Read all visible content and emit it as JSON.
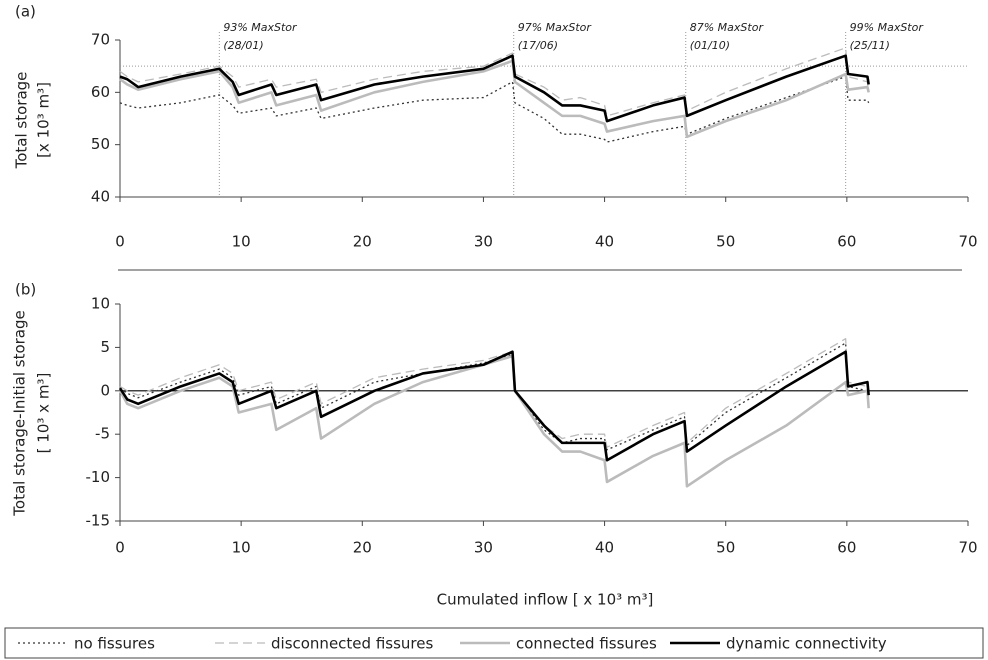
{
  "chart_data": [
    {
      "type": "line",
      "panel_label": "(a)",
      "ylabel": [
        "Total storage",
        "[x 10³ m³]"
      ],
      "xlim": [
        0,
        70
      ],
      "xticks": [
        0,
        10,
        20,
        30,
        40,
        50,
        60,
        70
      ],
      "ylim": [
        40,
        70
      ],
      "yticks": [
        40,
        50,
        60,
        70
      ],
      "hline": 65,
      "annotations": [
        {
          "x": 8.2,
          "label": "93% MaxStor",
          "date": "(28/01)"
        },
        {
          "x": 32.5,
          "label": "97% MaxStor",
          "date": "(17/06)"
        },
        {
          "x": 46.7,
          "label": "87% MaxStor",
          "date": "(01/10)"
        },
        {
          "x": 59.9,
          "label": "99% MaxStor",
          "date": "(25/11)"
        }
      ],
      "x": [
        0,
        0.6,
        1.5,
        5,
        8.2,
        9.3,
        9.8,
        12.5,
        12.9,
        16.2,
        16.6,
        21,
        25,
        30,
        32.4,
        32.6,
        35,
        36.5,
        38,
        40,
        40.2,
        44,
        46.6,
        46.8,
        50,
        55,
        59.9,
        60.1,
        61.7,
        61.8
      ],
      "series": [
        {
          "color": "#333333",
          "dash": "dotted",
          "values": [
            58,
            57.5,
            57,
            58,
            59.5,
            57.5,
            56,
            57,
            55.5,
            57,
            55,
            57,
            58.5,
            59,
            62,
            58,
            55,
            52,
            52,
            51,
            50.5,
            52.5,
            53.5,
            52,
            55,
            59,
            63,
            58.5,
            58.5,
            58
          ]
        },
        {
          "color": "#bbbbbb",
          "dash": "dashed",
          "values": [
            64,
            63,
            62,
            63.5,
            65,
            63,
            61,
            62.5,
            61,
            62.5,
            60,
            62.5,
            64,
            65,
            67.5,
            63.5,
            61,
            58.5,
            59,
            57.5,
            55.5,
            58,
            59.5,
            56.5,
            60,
            64.5,
            68.5,
            63,
            62,
            60
          ]
        },
        {
          "color": "#bbbbbb",
          "dash": "solid",
          "values": [
            62.5,
            61.5,
            60.5,
            62.5,
            64,
            61,
            58,
            60,
            57.5,
            59.5,
            56.5,
            60,
            62,
            64,
            66,
            62,
            58,
            55.5,
            55.5,
            54,
            52.5,
            54.5,
            55.5,
            51.5,
            54.5,
            58.5,
            63.5,
            60.5,
            61,
            60
          ]
        },
        {
          "color": "#000000",
          "dash": "solid",
          "values": [
            63,
            62.5,
            61,
            63,
            64.5,
            62,
            59.5,
            61.5,
            59.5,
            61.5,
            58.5,
            61.5,
            63,
            64.5,
            67,
            63,
            60,
            57.5,
            57.5,
            56.5,
            54.5,
            57.5,
            59,
            55.5,
            58.5,
            63,
            67,
            63.5,
            63,
            61.5
          ]
        }
      ]
    },
    {
      "type": "line",
      "panel_label": "(b)",
      "ylabel": [
        "Total storage-Initial storage",
        "[ 10³ x m³]"
      ],
      "xlabel": "Cumulated inflow [ x 10³ m³]",
      "xlim": [
        0,
        70
      ],
      "xticks": [
        0,
        10,
        20,
        30,
        40,
        50,
        60,
        70
      ],
      "ylim": [
        -15,
        10
      ],
      "yticks": [
        -15,
        -10,
        -5,
        0,
        5,
        10
      ],
      "hline": 0,
      "x": [
        0,
        0.6,
        1.5,
        5,
        8.2,
        9.3,
        9.8,
        12.5,
        12.9,
        16.2,
        16.6,
        21,
        25,
        30,
        32.4,
        32.6,
        35,
        36.5,
        38,
        40,
        40.2,
        44,
        46.6,
        46.8,
        50,
        55,
        59.9,
        60.1,
        61.7,
        61.8
      ],
      "series": [
        {
          "name": "no fissures",
          "color": "#333333",
          "dash": "dotted",
          "values": [
            0.3,
            -0.3,
            -0.8,
            1,
            2.5,
            1.5,
            -0.5,
            0.5,
            -1.5,
            0.5,
            -2,
            1,
            2,
            3.2,
            4.2,
            0,
            -4.5,
            -6,
            -5.5,
            -5.5,
            -6.8,
            -4.5,
            -3,
            -6.3,
            -2.5,
            1.5,
            5.5,
            0.5,
            0,
            -0.5
          ]
        },
        {
          "name": "disconnected fissures",
          "color": "#bbbbbb",
          "dash": "dashed",
          "values": [
            0.5,
            0,
            -0.5,
            1.5,
            3,
            2,
            0,
            1,
            -1,
            1,
            -1.5,
            1.5,
            2.5,
            3.5,
            4.5,
            0,
            -4,
            -5.5,
            -5,
            -5,
            -6.5,
            -4,
            -2.5,
            -6,
            -2,
            2,
            6,
            1,
            0.5,
            0
          ]
        },
        {
          "name": "connected fissures",
          "color": "#bbbbbb",
          "dash": "solid",
          "values": [
            0,
            -1.5,
            -2,
            0,
            1.5,
            0.5,
            -2.5,
            -1.5,
            -4.5,
            -2,
            -5.5,
            -1.5,
            1,
            3,
            4,
            0,
            -5,
            -7,
            -7,
            -8,
            -10.5,
            -7.5,
            -6,
            -11,
            -8,
            -4,
            1,
            -0.5,
            0,
            -2
          ]
        },
        {
          "name": "dynamic connectivity",
          "color": "#000000",
          "dash": "solid",
          "values": [
            0.3,
            -1,
            -1.5,
            0.5,
            2,
            1,
            -1.5,
            0,
            -2,
            0,
            -3,
            0,
            2,
            3,
            4.5,
            0,
            -4,
            -6,
            -6,
            -6,
            -8,
            -5,
            -3.5,
            -7,
            -4,
            0.5,
            4.5,
            0.5,
            1,
            -0.5
          ]
        }
      ]
    }
  ]
}
